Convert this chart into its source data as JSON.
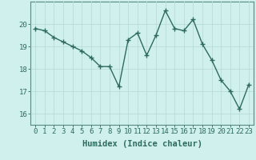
{
  "x": [
    0,
    1,
    2,
    3,
    4,
    5,
    6,
    7,
    8,
    9,
    10,
    11,
    12,
    13,
    14,
    15,
    16,
    17,
    18,
    19,
    20,
    21,
    22,
    23
  ],
  "y": [
    19.8,
    19.7,
    19.4,
    19.2,
    19.0,
    18.8,
    18.5,
    18.1,
    18.1,
    17.2,
    19.3,
    19.6,
    18.6,
    19.5,
    20.6,
    19.8,
    19.7,
    20.2,
    19.1,
    18.4,
    17.5,
    17.0,
    16.2,
    17.3
  ],
  "line_color": "#2e6b5e",
  "marker": "+",
  "marker_size": 4,
  "marker_lw": 1.0,
  "bg_color": "#cff0ec",
  "grid_color": "#b8ddd8",
  "xlabel": "Humidex (Indice chaleur)",
  "ylim": [
    15.5,
    21.0
  ],
  "xlim": [
    -0.5,
    23.5
  ],
  "yticks": [
    16,
    17,
    18,
    19,
    20
  ],
  "xticks": [
    0,
    1,
    2,
    3,
    4,
    5,
    6,
    7,
    8,
    9,
    10,
    11,
    12,
    13,
    14,
    15,
    16,
    17,
    18,
    19,
    20,
    21,
    22,
    23
  ],
  "xlabel_fontsize": 7.5,
  "tick_fontsize": 6.5,
  "line_width": 1.0,
  "spine_color": "#5a8a80"
}
